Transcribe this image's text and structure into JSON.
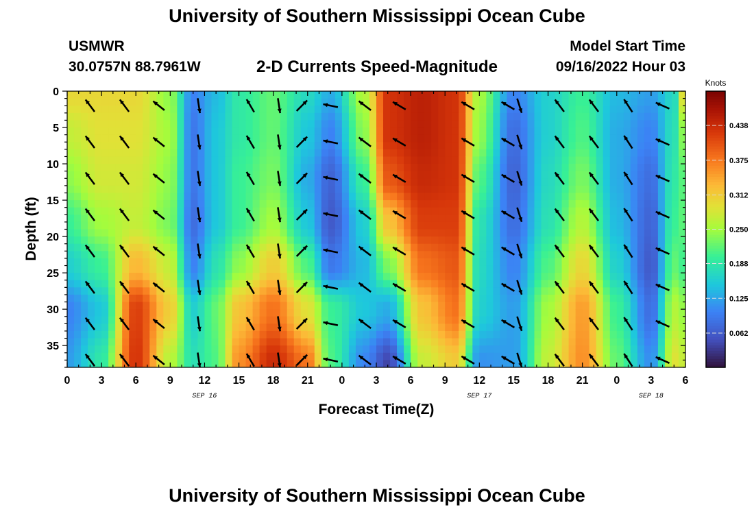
{
  "header": {
    "title": "University of Southern Mississippi Ocean Cube",
    "station": "USMWR",
    "location": "30.0757N  88.7961W",
    "plot_title": "2-D Currents Speed-Magnitude",
    "model_start_label": "Model Start Time",
    "model_start_value": "09/16/2022 Hour 03"
  },
  "footer": {
    "title": "University of Southern Mississippi Ocean Cube"
  },
  "chart_data": {
    "type": "heatmap",
    "title": "2-D Currents Speed-Magnitude",
    "xlabel": "Forecast Time(Z)",
    "ylabel": "Depth (ft)",
    "x_range_hours": [
      0,
      54
    ],
    "ylim": [
      0,
      38
    ],
    "x_tick_hours": [
      0,
      3,
      6,
      9,
      12,
      15,
      18,
      21,
      24,
      27,
      30,
      33,
      36,
      39,
      42,
      45,
      48,
      51,
      54
    ],
    "x_tick_labels": [
      "0",
      "3",
      "6",
      "9",
      "12",
      "15",
      "18",
      "21",
      "0",
      "3",
      "6",
      "9",
      "12",
      "15",
      "18",
      "21",
      "0",
      "3",
      "6"
    ],
    "date_labels": [
      {
        "hour": 12,
        "text": "SEP 16"
      },
      {
        "hour": 36,
        "text": "SEP 17"
      },
      {
        "hour": 51,
        "text": "SEP 18"
      }
    ],
    "y_ticks": [
      0,
      5,
      10,
      15,
      20,
      25,
      30,
      35
    ],
    "colorbar": {
      "title": "Knots",
      "min": 0.0,
      "max": 0.5,
      "ticks": [
        0.062,
        0.125,
        0.188,
        0.25,
        0.312,
        0.375,
        0.438
      ],
      "tick_labels": [
        "0.062",
        "0.125",
        "0.188",
        "0.250",
        "0.312",
        "0.375",
        "0.438"
      ]
    },
    "speed_columns": [
      {
        "hour": 0,
        "speeds": [
          0.3,
          0.27,
          0.24,
          0.2,
          0.16,
          0.1,
          0.12
        ]
      },
      {
        "hour": 3,
        "speeds": [
          0.3,
          0.29,
          0.28,
          0.25,
          0.2,
          0.15,
          0.19
        ]
      },
      {
        "hour": 6,
        "speeds": [
          0.3,
          0.29,
          0.28,
          0.27,
          0.33,
          0.42,
          0.43
        ]
      },
      {
        "hour": 9,
        "speeds": [
          0.24,
          0.25,
          0.24,
          0.23,
          0.27,
          0.31,
          0.26
        ]
      },
      {
        "hour": 11,
        "speeds": [
          0.1,
          0.09,
          0.09,
          0.08,
          0.1,
          0.16,
          0.18
        ]
      },
      {
        "hour": 13,
        "speeds": [
          0.14,
          0.15,
          0.15,
          0.15,
          0.18,
          0.22,
          0.21
        ]
      },
      {
        "hour": 15,
        "speeds": [
          0.19,
          0.19,
          0.2,
          0.2,
          0.24,
          0.32,
          0.36
        ]
      },
      {
        "hour": 18,
        "speeds": [
          0.22,
          0.22,
          0.23,
          0.25,
          0.31,
          0.38,
          0.44
        ]
      },
      {
        "hour": 21,
        "speeds": [
          0.17,
          0.15,
          0.13,
          0.15,
          0.21,
          0.29,
          0.38
        ]
      },
      {
        "hour": 23,
        "speeds": [
          0.13,
          0.1,
          0.07,
          0.06,
          0.09,
          0.2,
          0.21
        ]
      },
      {
        "hour": 26,
        "speeds": [
          0.26,
          0.24,
          0.2,
          0.16,
          0.14,
          0.15,
          0.1
        ]
      },
      {
        "hour": 28,
        "speeds": [
          0.43,
          0.43,
          0.4,
          0.32,
          0.23,
          0.13,
          0.04
        ]
      },
      {
        "hour": 31,
        "speeds": [
          0.45,
          0.45,
          0.44,
          0.42,
          0.38,
          0.32,
          0.27
        ]
      },
      {
        "hour": 34,
        "speeds": [
          0.43,
          0.43,
          0.43,
          0.42,
          0.4,
          0.38,
          0.31
        ]
      },
      {
        "hour": 36,
        "speeds": [
          0.25,
          0.24,
          0.21,
          0.18,
          0.17,
          0.16,
          0.11
        ]
      },
      {
        "hour": 39,
        "speeds": [
          0.1,
          0.08,
          0.07,
          0.08,
          0.1,
          0.12,
          0.12
        ]
      },
      {
        "hour": 42,
        "speeds": [
          0.16,
          0.16,
          0.17,
          0.18,
          0.21,
          0.25,
          0.27
        ]
      },
      {
        "hour": 45,
        "speeds": [
          0.2,
          0.21,
          0.23,
          0.26,
          0.3,
          0.35,
          0.36
        ]
      },
      {
        "hour": 48,
        "speeds": [
          0.14,
          0.13,
          0.13,
          0.14,
          0.16,
          0.2,
          0.22
        ]
      },
      {
        "hour": 51,
        "speeds": [
          0.12,
          0.1,
          0.08,
          0.07,
          0.06,
          0.08,
          0.11
        ]
      },
      {
        "hour": 53,
        "speeds": [
          0.17,
          0.18,
          0.19,
          0.2,
          0.22,
          0.26,
          0.29
        ]
      },
      {
        "hour": 54,
        "speeds": [
          0.32,
          0.25,
          0.22,
          0.22,
          0.2,
          0.24,
          0.27
        ]
      }
    ],
    "speed_depths": [
      0,
      6,
      12,
      18,
      24,
      30,
      38
    ],
    "vector_columns": [
      {
        "hour": 2,
        "u": -0.6,
        "v": 0.8
      },
      {
        "hour": 5,
        "u": -0.6,
        "v": 0.8
      },
      {
        "hour": 8,
        "u": -0.75,
        "v": 0.6
      },
      {
        "hour": 11.5,
        "u": 0.15,
        "v": -0.99
      },
      {
        "hour": 16,
        "u": -0.5,
        "v": 0.85
      },
      {
        "hour": 18.5,
        "u": 0.15,
        "v": -0.99
      },
      {
        "hour": 20.5,
        "u": 0.7,
        "v": 0.7
      },
      {
        "hour": 23,
        "u": -0.97,
        "v": 0.2
      },
      {
        "hour": 26,
        "u": -0.8,
        "v": 0.6
      },
      {
        "hour": 29,
        "u": -0.85,
        "v": 0.5
      },
      {
        "hour": 35,
        "u": -0.85,
        "v": 0.5
      },
      {
        "hour": 38.5,
        "u": -0.85,
        "v": 0.5
      },
      {
        "hour": 39.5,
        "u": 0.3,
        "v": -0.95
      },
      {
        "hour": 43,
        "u": -0.6,
        "v": 0.8
      },
      {
        "hour": 46,
        "u": -0.6,
        "v": 0.8
      },
      {
        "hour": 49,
        "u": -0.55,
        "v": 0.85
      },
      {
        "hour": 52,
        "u": -0.9,
        "v": 0.4
      }
    ]
  }
}
